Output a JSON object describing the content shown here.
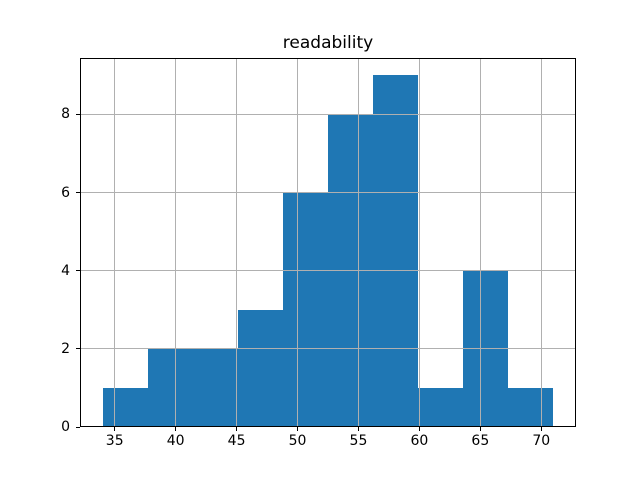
{
  "chart_data": {
    "type": "bar",
    "subtype": "histogram",
    "title": "readability",
    "xlabel": "",
    "ylabel": "",
    "bin_edges": [
      34.0,
      37.7,
      41.4,
      45.1,
      48.8,
      52.5,
      56.2,
      59.9,
      63.6,
      67.3,
      71.0
    ],
    "counts": [
      1,
      2,
      2,
      3,
      6,
      8,
      9,
      1,
      4,
      1
    ],
    "x_ticks": [
      35,
      40,
      45,
      50,
      55,
      60,
      65,
      70
    ],
    "y_ticks": [
      0,
      2,
      4,
      6,
      8
    ],
    "xlim": [
      32.15,
      72.85
    ],
    "ylim": [
      0,
      9.45
    ],
    "grid": true,
    "grid_over_bars": true,
    "legend": false,
    "bar_color": "#1f77b4",
    "grid_color": "#b0b0b0",
    "spine_color": "#000000",
    "background_color": "#ffffff"
  }
}
